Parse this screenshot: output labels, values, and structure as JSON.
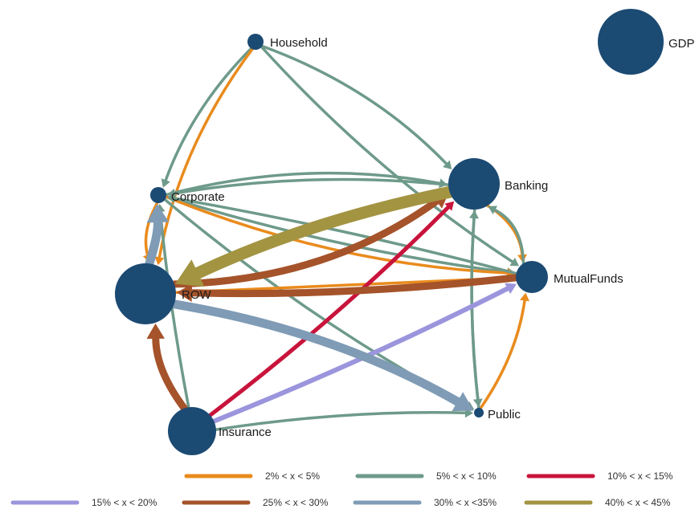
{
  "diagram": {
    "node_color": "#1b4a73",
    "scale_reference": {
      "label": "GDP"
    },
    "nodes": [
      {
        "id": "household",
        "label": "Household"
      },
      {
        "id": "corporate",
        "label": "Corporate"
      },
      {
        "id": "banking",
        "label": "Banking"
      },
      {
        "id": "mutualfunds",
        "label": "MutualFunds"
      },
      {
        "id": "row",
        "label": "ROW"
      },
      {
        "id": "public",
        "label": "Public"
      },
      {
        "id": "insurance",
        "label": "Insurance"
      }
    ],
    "legend": [
      {
        "label": "2% < x < 5%",
        "color": "#e98b1d"
      },
      {
        "label": "5% < x < 10%",
        "color": "#6e9a8a"
      },
      {
        "label": "10% < x < 15%",
        "color": "#c8143c"
      },
      {
        "label": "15% < x < 20%",
        "color": "#9a95dc"
      },
      {
        "label": "25% < x < 30%",
        "color": "#a5532a"
      },
      {
        "label": "30% < x <35%",
        "color": "#7f9bb5"
      },
      {
        "label": "40% < x < 45%",
        "color": "#a39442"
      }
    ],
    "edges": [
      {
        "from": "household",
        "to": "corporate",
        "class": "5% < x < 10%"
      },
      {
        "from": "household",
        "to": "banking",
        "class": "5% < x < 10%"
      },
      {
        "from": "household",
        "to": "mutualfunds",
        "class": "5% < x < 10%"
      },
      {
        "from": "household",
        "to": "row",
        "class": "2% < x < 5%"
      },
      {
        "from": "corporate",
        "to": "banking",
        "class": "5% < x < 10%"
      },
      {
        "from": "corporate",
        "to": "mutualfunds",
        "class": "5% < x < 10%"
      },
      {
        "from": "corporate",
        "to": "mutualfunds",
        "class": "2% < x < 5%"
      },
      {
        "from": "corporate",
        "to": "public",
        "class": "5% < x < 10%"
      },
      {
        "from": "corporate",
        "to": "row",
        "class": "2% < x < 5%"
      },
      {
        "from": "banking",
        "to": "corporate",
        "class": "5% < x < 10%"
      },
      {
        "from": "banking",
        "to": "mutualfunds",
        "class": "2% < x < 5%"
      },
      {
        "from": "banking",
        "to": "public",
        "class": "5% < x < 10%"
      },
      {
        "from": "banking",
        "to": "row",
        "class": "40% < x < 45%"
      },
      {
        "from": "mutualfunds",
        "to": "banking",
        "class": "5% < x < 10%"
      },
      {
        "from": "mutualfunds",
        "to": "corporate",
        "class": "5% < x < 10%"
      },
      {
        "from": "mutualfunds",
        "to": "row",
        "class": "25% < x < 30%"
      },
      {
        "from": "row",
        "to": "banking",
        "class": "25% < x < 30%"
      },
      {
        "from": "row",
        "to": "corporate",
        "class": "30% < x <35%"
      },
      {
        "from": "row",
        "to": "mutualfunds",
        "class": "2% < x < 5%"
      },
      {
        "from": "row",
        "to": "public",
        "class": "30% < x <35%"
      },
      {
        "from": "public",
        "to": "mutualfunds",
        "class": "2% < x < 5%"
      },
      {
        "from": "public",
        "to": "banking",
        "class": "5% < x < 10%"
      },
      {
        "from": "insurance",
        "to": "row",
        "class": "25% < x < 30%"
      },
      {
        "from": "insurance",
        "to": "banking",
        "class": "10% < x < 15%"
      },
      {
        "from": "insurance",
        "to": "mutualfunds",
        "class": "15% < x < 20%"
      },
      {
        "from": "insurance",
        "to": "public",
        "class": "5% < x < 10%"
      },
      {
        "from": "insurance",
        "to": "corporate",
        "class": "5% < x < 10%"
      }
    ]
  }
}
